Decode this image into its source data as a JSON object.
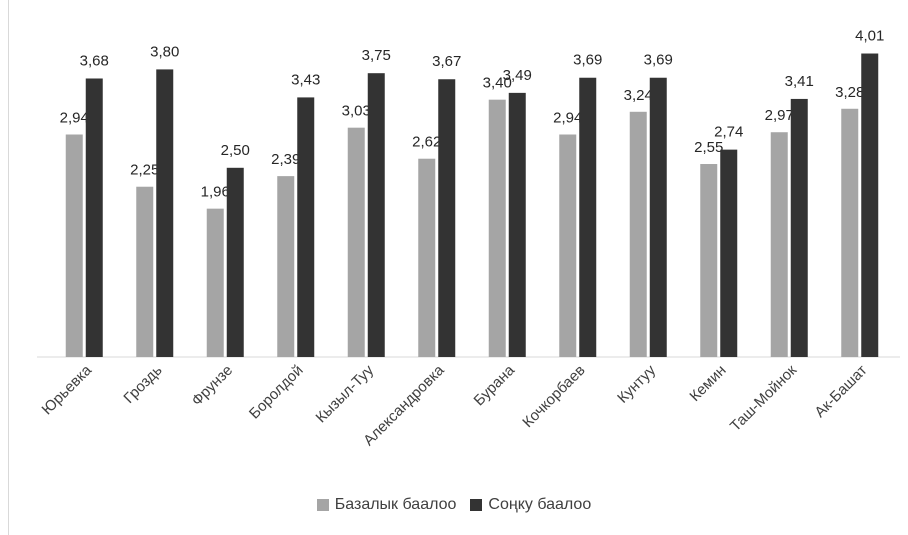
{
  "chart_data": {
    "type": "bar",
    "title": "",
    "xlabel": "",
    "ylabel": "",
    "ylim": [
      0,
      4.4
    ],
    "grid": false,
    "legend_position": "bottom",
    "categories": [
      "Юрьевка",
      "Гроздь",
      "Фрунзе",
      "Боролдой",
      "Кызыл-Туу",
      "Александровка",
      "Бурана",
      "Кочкорбаев",
      "Кунтуу",
      "Кемин",
      "Таш-Мойнок",
      "Ак-Башат"
    ],
    "series": [
      {
        "name": "Базалык баалоо",
        "color": "#a5a5a5",
        "values": [
          2.94,
          2.25,
          1.96,
          2.39,
          3.03,
          2.62,
          3.4,
          2.94,
          3.24,
          2.55,
          2.97,
          3.28
        ],
        "labels": [
          "2,94",
          "2,25",
          "1,96",
          "2,39",
          "3,03",
          "2,62",
          "3,40",
          "2,94",
          "3,24",
          "2,55",
          "2,97",
          "3,28"
        ]
      },
      {
        "name": "Соңку баалоо",
        "color": "#333333",
        "values": [
          3.68,
          3.8,
          2.5,
          3.43,
          3.75,
          3.67,
          3.49,
          3.69,
          3.69,
          2.74,
          3.41,
          4.01
        ],
        "labels": [
          "3,68",
          "3,80",
          "2,50",
          "3,43",
          "3,75",
          "3,67",
          "3,49",
          "3,69",
          "3,69",
          "2,74",
          "3,41",
          "4,01"
        ]
      }
    ]
  }
}
